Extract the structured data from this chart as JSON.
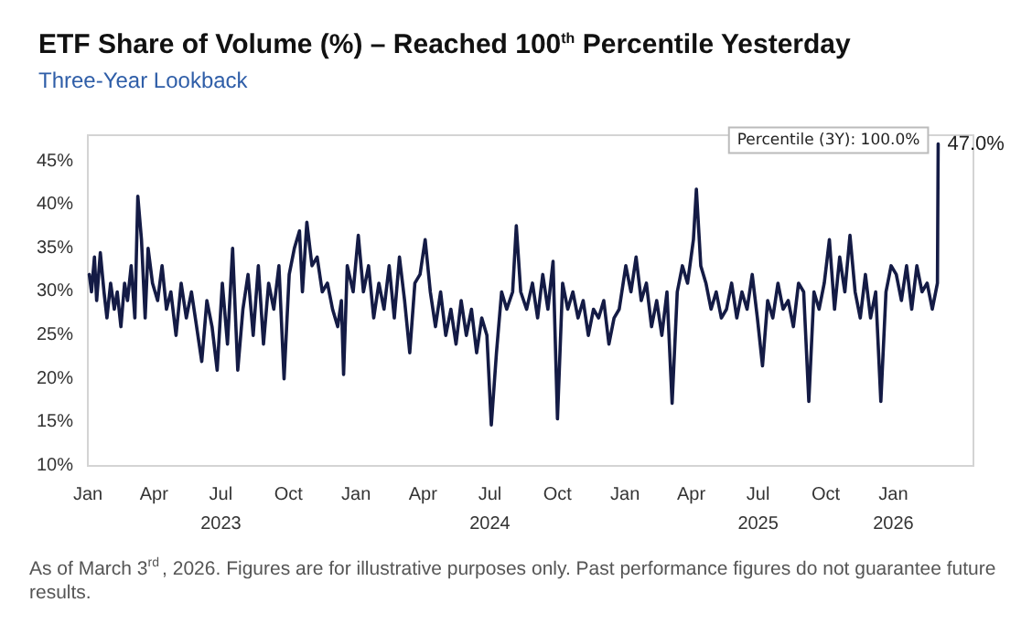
{
  "chart_data": {
    "type": "line",
    "title": "ETF Share of Volume (%) – Reached 100$^{th}$ Percentile Yesterday",
    "subtitle": "Three-Year Lookback",
    "annotations": [
      {
        "text": "Percentile (3Y): 100.0%",
        "x": "2026-03-03",
        "y": 47
      },
      "As of March 3$^{rd}$, 2026. Figures are for illustrative purposes only. Past performance figures do not guarantee future results."
    ],
    "series": [
      {
        "color": "#141b45",
        "x": [
          "2023-01-03",
          "2023-01-06",
          "2023-01-10",
          "2023-01-13",
          "2023-01-18",
          "2023-01-23",
          "2023-01-27",
          "2023-02-01",
          "2023-02-06",
          "2023-02-10",
          "2023-02-15",
          "2023-02-20",
          "2023-02-24",
          "2023-03-01",
          "2023-03-06",
          "2023-03-10",
          "2023-03-15",
          "2023-03-20",
          "2023-03-24",
          "2023-03-30",
          "2023-04-06",
          "2023-04-12",
          "2023-04-18",
          "2023-04-24",
          "2023-05-01",
          "2023-05-08",
          "2023-05-15",
          "2023-05-22",
          "2023-05-29",
          "2023-06-05",
          "2023-06-12",
          "2023-06-19",
          "2023-06-26",
          "2023-07-03",
          "2023-07-10",
          "2023-07-17",
          "2023-07-24",
          "2023-07-31",
          "2023-08-07",
          "2023-08-14",
          "2023-08-21",
          "2023-08-28",
          "2023-09-04",
          "2023-09-11",
          "2023-09-18",
          "2023-09-25",
          "2023-10-02",
          "2023-10-09",
          "2023-10-16",
          "2023-10-20",
          "2023-10-26",
          "2023-11-02",
          "2023-11-09",
          "2023-11-16",
          "2023-11-23",
          "2023-11-30",
          "2023-12-07",
          "2023-12-12",
          "2023-12-15",
          "2023-12-20",
          "2023-12-28",
          "2024-01-04",
          "2024-01-11",
          "2024-01-18",
          "2024-01-25",
          "2024-02-01",
          "2024-02-08",
          "2024-02-15",
          "2024-02-22",
          "2024-02-29",
          "2024-03-07",
          "2024-03-14",
          "2024-03-21",
          "2024-03-28",
          "2024-04-04",
          "2024-04-11",
          "2024-04-18",
          "2024-04-25",
          "2024-05-02",
          "2024-05-09",
          "2024-05-16",
          "2024-05-23",
          "2024-05-30",
          "2024-06-06",
          "2024-06-13",
          "2024-06-20",
          "2024-06-27",
          "2024-07-03",
          "2024-07-10",
          "2024-07-17",
          "2024-07-24",
          "2024-08-01",
          "2024-08-06",
          "2024-08-12",
          "2024-08-20",
          "2024-08-28",
          "2024-09-04",
          "2024-09-11",
          "2024-09-18",
          "2024-09-25",
          "2024-10-01",
          "2024-10-08",
          "2024-10-15",
          "2024-10-22",
          "2024-10-29",
          "2024-11-05",
          "2024-11-12",
          "2024-11-19",
          "2024-11-26",
          "2024-12-03",
          "2024-12-10",
          "2024-12-17",
          "2024-12-24",
          "2025-01-02",
          "2025-01-09",
          "2025-01-16",
          "2025-01-23",
          "2025-01-30",
          "2025-02-06",
          "2025-02-13",
          "2025-02-20",
          "2025-02-27",
          "2025-03-06",
          "2025-03-13",
          "2025-03-20",
          "2025-03-27",
          "2025-04-04",
          "2025-04-08",
          "2025-04-14",
          "2025-04-21",
          "2025-04-28",
          "2025-05-05",
          "2025-05-12",
          "2025-05-19",
          "2025-05-26",
          "2025-06-02",
          "2025-06-09",
          "2025-06-16",
          "2025-06-23",
          "2025-06-30",
          "2025-07-07",
          "2025-07-14",
          "2025-07-21",
          "2025-07-28",
          "2025-08-04",
          "2025-08-11",
          "2025-08-18",
          "2025-08-25",
          "2025-09-01",
          "2025-09-08",
          "2025-09-15",
          "2025-09-22",
          "2025-09-29",
          "2025-10-06",
          "2025-10-13",
          "2025-10-20",
          "2025-10-27",
          "2025-11-03",
          "2025-11-10",
          "2025-11-17",
          "2025-11-24",
          "2025-12-01",
          "2025-12-08",
          "2025-12-15",
          "2025-12-22",
          "2025-12-29",
          "2026-01-05",
          "2026-01-12",
          "2026-01-19",
          "2026-01-26",
          "2026-02-02",
          "2026-02-09",
          "2026-02-16",
          "2026-02-23",
          "2026-03-02",
          "2026-03-03"
        ],
        "values": [
          32,
          30,
          34,
          29,
          34.5,
          30,
          27,
          31,
          28,
          30,
          26,
          31,
          29,
          33,
          27,
          41,
          36,
          27,
          35,
          31,
          29,
          33,
          28,
          30,
          25,
          31,
          27,
          30,
          26,
          22,
          29,
          26,
          21,
          31,
          24,
          35,
          21,
          28,
          32,
          25,
          33,
          24,
          31,
          28,
          33,
          20,
          32,
          35,
          37,
          30,
          38,
          33,
          34,
          30,
          31,
          28,
          26,
          29,
          20.5,
          33,
          30,
          36.5,
          30,
          33,
          27,
          31,
          28,
          33,
          27,
          34,
          29,
          23,
          31,
          32,
          36,
          30,
          26,
          30,
          25,
          28,
          24,
          29,
          25,
          28,
          23,
          27,
          25,
          14.7,
          23,
          30,
          28,
          30,
          37.6,
          30,
          28,
          31,
          27,
          32,
          28,
          33.5,
          15.4,
          31,
          28,
          30,
          27,
          29,
          25,
          28,
          27,
          29,
          24,
          27,
          28,
          33,
          30,
          34,
          29,
          31,
          26,
          29,
          25,
          30,
          17.2,
          30,
          33,
          31,
          36,
          41.8,
          33,
          31,
          28,
          30,
          27,
          28,
          31,
          27,
          30,
          28,
          32,
          27,
          21.5,
          29,
          27,
          31,
          28,
          29,
          26,
          31,
          30,
          17.4,
          30,
          28,
          31,
          36,
          28,
          34,
          30,
          36.5,
          30,
          27,
          32,
          27,
          30,
          17.4,
          30,
          33,
          32,
          29,
          33,
          28,
          33,
          30,
          31,
          28,
          31,
          47
        ],
        "value_labels": [
          null,
          null,
          null,
          null,
          null,
          null,
          null,
          null,
          null,
          null,
          null,
          null,
          null,
          null,
          null,
          null,
          null,
          null,
          null,
          null,
          null,
          null,
          null,
          null,
          null,
          null,
          null,
          null,
          null,
          null,
          null,
          null,
          null,
          null,
          null,
          null,
          null,
          null,
          null,
          null,
          null,
          null,
          null,
          null,
          null,
          null,
          null,
          null,
          null,
          null,
          null,
          null,
          null,
          null,
          null,
          null,
          null,
          null,
          null,
          null,
          null,
          null,
          null,
          null,
          null,
          null,
          null,
          null,
          null,
          null,
          null,
          null,
          null,
          null,
          null,
          null,
          null,
          null,
          null,
          null,
          null,
          null,
          null,
          null,
          null,
          null,
          null,
          null,
          null,
          null,
          null,
          null,
          null,
          null,
          null,
          null,
          null,
          null,
          null,
          null,
          null,
          null,
          null,
          null,
          null,
          null,
          null,
          null,
          null,
          null,
          null,
          null,
          null,
          null,
          null,
          null,
          null,
          null,
          null,
          null,
          null,
          null,
          null,
          null,
          null,
          null,
          null,
          null,
          null,
          null,
          null,
          null,
          null,
          null,
          null,
          null,
          null,
          null,
          null,
          null,
          null,
          null,
          null,
          null,
          null,
          null,
          null,
          null,
          null,
          null,
          null,
          null,
          null,
          null,
          null,
          null,
          null,
          null,
          null,
          null,
          null,
          null,
          null,
          null,
          null,
          null,
          null,
          null,
          null,
          null,
          null,
          null,
          null,
          null,
          null,
          "47.0%"
        ]
      }
    ],
    "xticks": [
      {
        "value": "2023-01-01",
        "label": "Jan"
      },
      {
        "value": "2023-04-01",
        "label": "Apr"
      },
      {
        "value": "2023-07-01",
        "label": "Jul\n2023"
      },
      {
        "value": "2023-10-01",
        "label": "Oct"
      },
      {
        "value": "2024-01-01",
        "label": "Jan"
      },
      {
        "value": "2024-04-01",
        "label": "Apr"
      },
      {
        "value": "2024-07-01",
        "label": "Jul\n2024"
      },
      {
        "value": "2024-10-01",
        "label": "Oct"
      },
      {
        "value": "2025-01-01",
        "label": "Jan"
      },
      {
        "value": "2025-04-01",
        "label": "Apr"
      },
      {
        "value": "2025-07-01",
        "label": "Jul\n2025"
      },
      {
        "value": "2025-10-01",
        "label": "Oct"
      },
      {
        "value": "2026-01-01",
        "label": "Jan\n2026"
      }
    ],
    "xlim": [
      "2023-01-01",
      "2026-04-20"
    ],
    "ylim": [
      10,
      48
    ],
    "yticks": [
      {
        "value": 10,
        "label": "10%"
      },
      {
        "value": 15,
        "label": "15%"
      },
      {
        "value": 20,
        "label": "20%"
      },
      {
        "value": 25,
        "label": "25%"
      },
      {
        "value": 30,
        "label": "30%"
      },
      {
        "value": 35,
        "label": "35%"
      },
      {
        "value": 40,
        "label": "40%"
      },
      {
        "value": 45,
        "label": "45%"
      }
    ],
    "grid": false,
    "marker": "none",
    "line_style": "solid"
  }
}
